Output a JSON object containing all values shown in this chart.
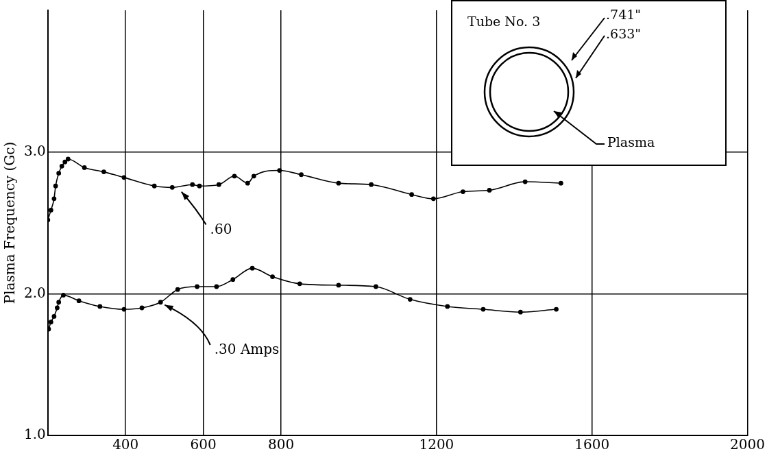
{
  "chart_data": {
    "type": "line",
    "ylabel": "Plasma Frequency (Gc)",
    "annotations": [
      "Tube No. 3",
      ".741\"",
      ".633\"",
      "Plasma"
    ],
    "xlim": [
      200,
      2000
    ],
    "xticks": [
      400,
      600,
      800,
      1200,
      1600,
      2000
    ],
    "ylim": [
      1,
      4
    ],
    "yticks": [
      {
        "value": 1,
        "label": "1.0"
      },
      {
        "value": 2,
        "label": "2.0"
      },
      {
        "value": 3,
        "label": "3.0"
      }
    ],
    "grid": true,
    "legend": false,
    "marker": "circle",
    "line_style": "solid",
    "series": [
      {
        "name": ".60",
        "color": "#000000",
        "x": [
          200,
          208,
          216,
          220,
          228,
          236,
          244,
          252,
          294,
          344,
          396,
          474,
          520,
          572,
          590,
          640,
          680,
          714,
          730,
          796,
          852,
          948,
          1032,
          1136,
          1192,
          1268,
          1336,
          1428,
          1520
        ],
        "values": [
          2.52,
          2.59,
          2.67,
          2.76,
          2.85,
          2.9,
          2.93,
          2.95,
          2.89,
          2.86,
          2.82,
          2.76,
          2.75,
          2.77,
          2.76,
          2.77,
          2.83,
          2.78,
          2.83,
          2.87,
          2.84,
          2.78,
          2.77,
          2.7,
          2.67,
          2.72,
          2.73,
          2.79,
          2.78
        ]
      },
      {
        "name": ".30 Amps",
        "color": "#000000",
        "x": [
          202,
          208,
          216,
          224,
          228,
          240,
          280,
          334,
          396,
          442,
          490,
          534,
          584,
          634,
          676,
          726,
          778,
          848,
          948,
          1044,
          1132,
          1228,
          1320,
          1416,
          1508
        ],
        "values": [
          1.75,
          1.8,
          1.84,
          1.9,
          1.94,
          1.99,
          1.95,
          1.91,
          1.89,
          1.9,
          1.94,
          2.03,
          2.05,
          2.05,
          2.1,
          2.18,
          2.12,
          2.07,
          2.06,
          2.05,
          1.96,
          1.91,
          1.89,
          1.87,
          1.89
        ]
      }
    ]
  }
}
